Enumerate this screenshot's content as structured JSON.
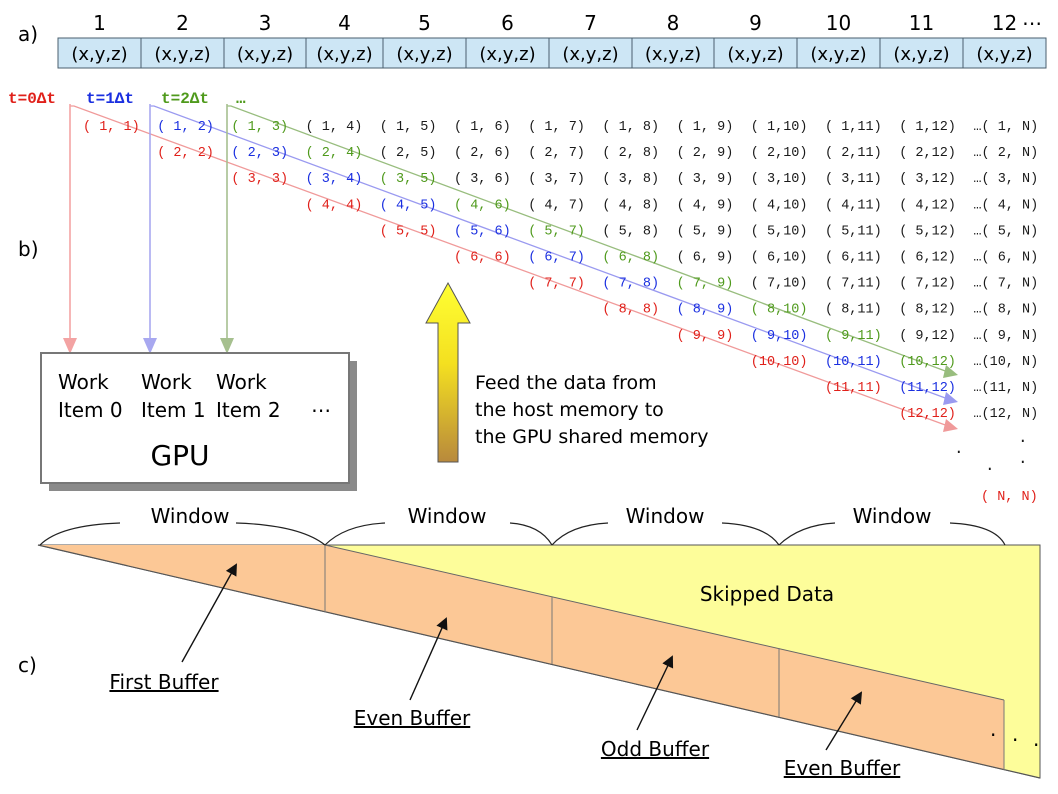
{
  "panel_labels": {
    "a": "a)",
    "b": "b)",
    "c": "c)"
  },
  "array": {
    "indices": [
      "1",
      "2",
      "3",
      "4",
      "5",
      "6",
      "7",
      "8",
      "9",
      "10",
      "11",
      "12"
    ],
    "ellipsis": "⋯",
    "cell_text": "(x,y,z)",
    "cell_fill": "#cde6f5"
  },
  "timesteps": [
    {
      "label": "t=0Δt",
      "color": "#e0201a"
    },
    {
      "label": "t=1Δt",
      "color": "#1a2fe0"
    },
    {
      "label": "t=2Δt",
      "color": "#4f9a1c"
    },
    {
      "label": "…",
      "color": "#4f9a1c"
    }
  ],
  "pairs": {
    "row_suffix": "…",
    "n_symbol": "N",
    "vertical_dots": "·",
    "last_pair": "( N, N)",
    "colors": {
      "red": "#e0201a",
      "blue": "#1a2fe0",
      "green": "#4f9a1c",
      "black": "#1a1a1a"
    }
  },
  "gpu": {
    "items": [
      {
        "l1": "Work",
        "l2": "Item 0"
      },
      {
        "l1": "Work",
        "l2": "Item 1"
      },
      {
        "l1": "Work",
        "l2": "Item 2"
      }
    ],
    "ellipsis": "⋯",
    "label": "GPU"
  },
  "feed_text": [
    "Feed the data from",
    "the host memory to",
    "the GPU shared memory"
  ],
  "windows": [
    "Window",
    "Window",
    "Window",
    "Window"
  ],
  "buffers": {
    "skipped": "Skipped Data",
    "labels": [
      "First Buffer",
      "Even Buffer",
      "Odd Buffer",
      "Even Buffer"
    ],
    "buffer_color": "#fcc896",
    "skipped_color": "#fdfd9a"
  }
}
